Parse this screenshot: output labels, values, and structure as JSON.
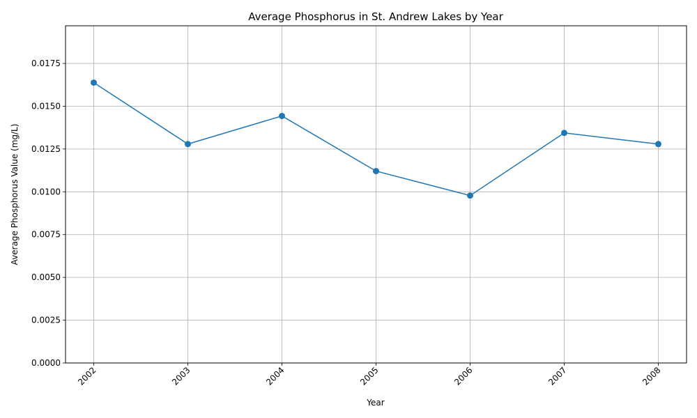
{
  "chart_data": {
    "type": "line",
    "title": "Average Phosphorus in St. Andrew Lakes by Year",
    "xlabel": "Year",
    "ylabel": "Average Phosphorus Value (mg/L)",
    "x": [
      "2002",
      "2003",
      "2004",
      "2005",
      "2006",
      "2007",
      "2008"
    ],
    "series": [
      {
        "values": [
          0.01638,
          0.01279,
          0.01443,
          0.01121,
          0.00978,
          0.01344,
          0.01279
        ]
      }
    ],
    "yticks": [
      "0.0000",
      "0.0025",
      "0.0050",
      "0.0075",
      "0.0100",
      "0.0125",
      "0.0150",
      "0.0175"
    ],
    "ylim": [
      0,
      0.0197
    ],
    "grid": true,
    "legend": "none",
    "color": "#1f77b4"
  }
}
